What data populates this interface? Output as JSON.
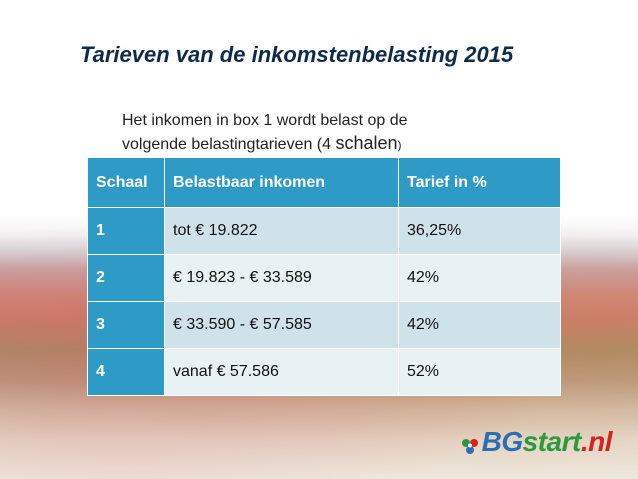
{
  "title": "Tarieven van de inkomstenbelasting 2015",
  "subtitle": {
    "line1": "Het inkomen in box 1 wordt belast op de",
    "line2_prefix": "volgende belastingtarieven (4 ",
    "line2_emph": "schalen",
    "line2_suffix": ")"
  },
  "table": {
    "headers": [
      "Schaal",
      "Belastbaar inkomen",
      "Tarief in %"
    ],
    "rows": [
      [
        "1",
        "tot € 19.822",
        "36,25%"
      ],
      [
        "2",
        "€ 19.823 - € 33.589",
        "42%"
      ],
      [
        "3",
        "€ 33.590 - € 57.585",
        "42%"
      ],
      [
        "4",
        "vanaf € 57.586",
        "52%"
      ]
    ]
  },
  "logo": {
    "part1": "BG",
    "part2": "start",
    "part3": ".nl",
    "colors": {
      "bg": "#2a6fb5",
      "start": "#2b9a3e",
      "nl": "#d4251c"
    }
  }
}
